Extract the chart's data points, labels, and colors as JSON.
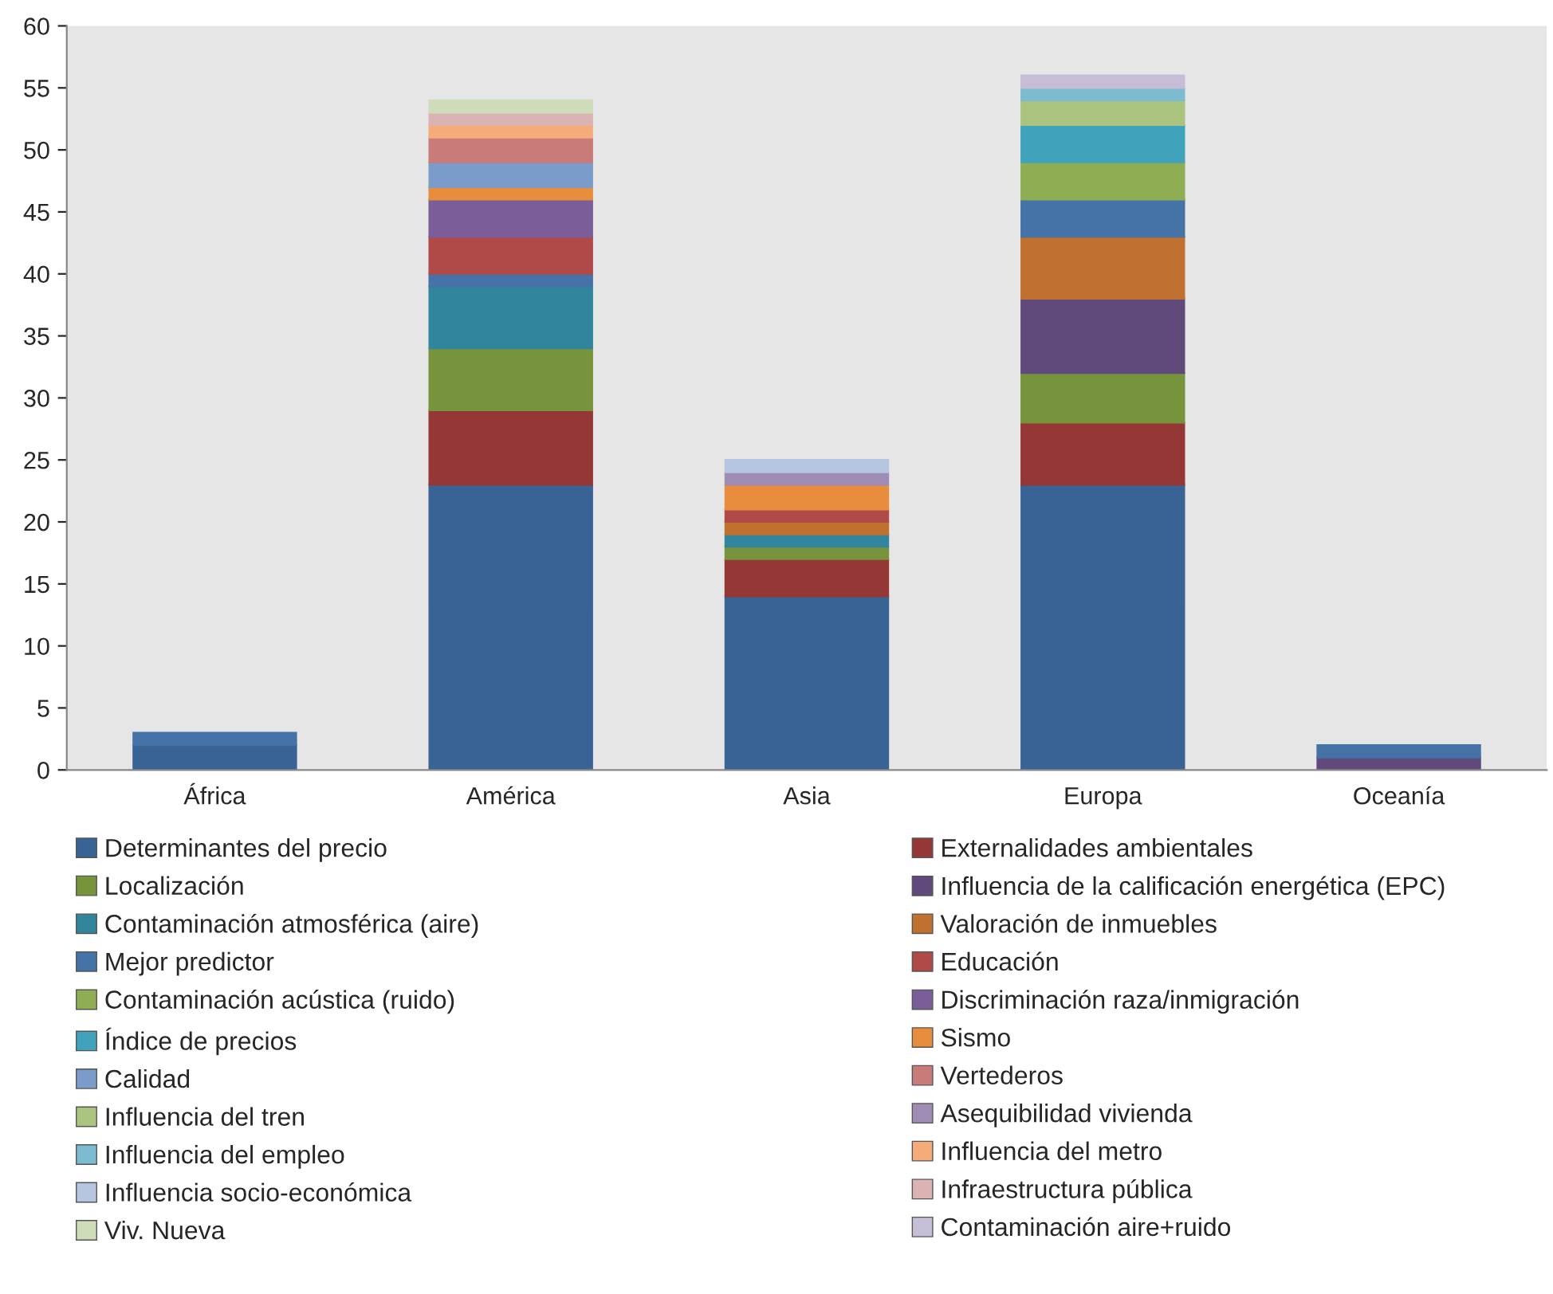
{
  "chart_data": {
    "type": "bar",
    "stacked": true,
    "categories": [
      "África",
      "América",
      "Asia",
      "Europa",
      "Oceanía"
    ],
    "ylim": [
      0,
      60
    ],
    "yticks": [
      0,
      5,
      10,
      15,
      20,
      25,
      30,
      35,
      40,
      45,
      50,
      55,
      60
    ],
    "grid": false,
    "legend": "bottom",
    "series": [
      {
        "name": "Determinantes del precio",
        "color": "#3a6395",
        "values": [
          2,
          23,
          14,
          23,
          0
        ]
      },
      {
        "name": "Externalidades ambientales",
        "color": "#953735",
        "values": [
          0,
          6,
          3,
          5,
          0
        ]
      },
      {
        "name": "Localización",
        "color": "#77933c",
        "values": [
          0,
          5,
          1,
          4,
          0
        ]
      },
      {
        "name": "Influencia de la calificación energética (EPC)",
        "color": "#604a7b",
        "values": [
          0,
          0,
          0,
          6,
          1
        ]
      },
      {
        "name": "Contaminación atmosférica (aire)",
        "color": "#31859c",
        "values": [
          0,
          5,
          1,
          0,
          0
        ]
      },
      {
        "name": "Valoración de inmuebles",
        "color": "#c0712f",
        "values": [
          0,
          0,
          1,
          5,
          0
        ]
      },
      {
        "name": "Mejor predictor",
        "color": "#4572a7",
        "values": [
          1,
          1,
          0,
          3,
          1
        ]
      },
      {
        "name": "Educación",
        "color": "#b04a48",
        "values": [
          0,
          3,
          1,
          0,
          0
        ]
      },
      {
        "name": "Contaminación acústica (ruido)",
        "color": "#8fae53",
        "values": [
          0,
          0,
          0,
          3,
          0
        ]
      },
      {
        "name": "Discriminación raza/inmigración",
        "color": "#7a5e99",
        "values": [
          0,
          3,
          0,
          0,
          0
        ]
      },
      {
        "name": "Índice de precios",
        "color": "#41a2bb",
        "values": [
          0,
          0,
          0,
          3,
          0
        ]
      },
      {
        "name": "Sismo",
        "color": "#e88d3e",
        "values": [
          0,
          1,
          2,
          0,
          0
        ]
      },
      {
        "name": "Calidad",
        "color": "#7b9bcb",
        "values": [
          0,
          2,
          0,
          0,
          0
        ]
      },
      {
        "name": "Vertederos",
        "color": "#c87b79",
        "values": [
          0,
          2,
          0,
          0,
          0
        ]
      },
      {
        "name": "Influencia del tren",
        "color": "#aac47f",
        "values": [
          0,
          0,
          0,
          2,
          0
        ]
      },
      {
        "name": "Asequibilidad vivienda",
        "color": "#9e8cb5",
        "values": [
          0,
          0,
          1,
          0,
          0
        ]
      },
      {
        "name": "Influencia del empleo",
        "color": "#7cbbd0",
        "values": [
          0,
          0,
          0,
          1,
          0
        ]
      },
      {
        "name": "Influencia del metro",
        "color": "#f5ac78",
        "values": [
          0,
          1,
          0,
          0,
          0
        ]
      },
      {
        "name": "Influencia socio-económica",
        "color": "#b7c6e0",
        "values": [
          0,
          0,
          1,
          0,
          0
        ]
      },
      {
        "name": "Infraestructura pública",
        "color": "#dcb3b3",
        "values": [
          0,
          1,
          0,
          0,
          0
        ]
      },
      {
        "name": "Viv. Nueva",
        "color": "#cfdcb9",
        "values": [
          0,
          1,
          0,
          0,
          0
        ]
      },
      {
        "name": "Contaminación aire+ruido",
        "color": "#c6bdd6",
        "values": [
          0,
          0,
          0,
          1,
          0
        ]
      }
    ]
  }
}
